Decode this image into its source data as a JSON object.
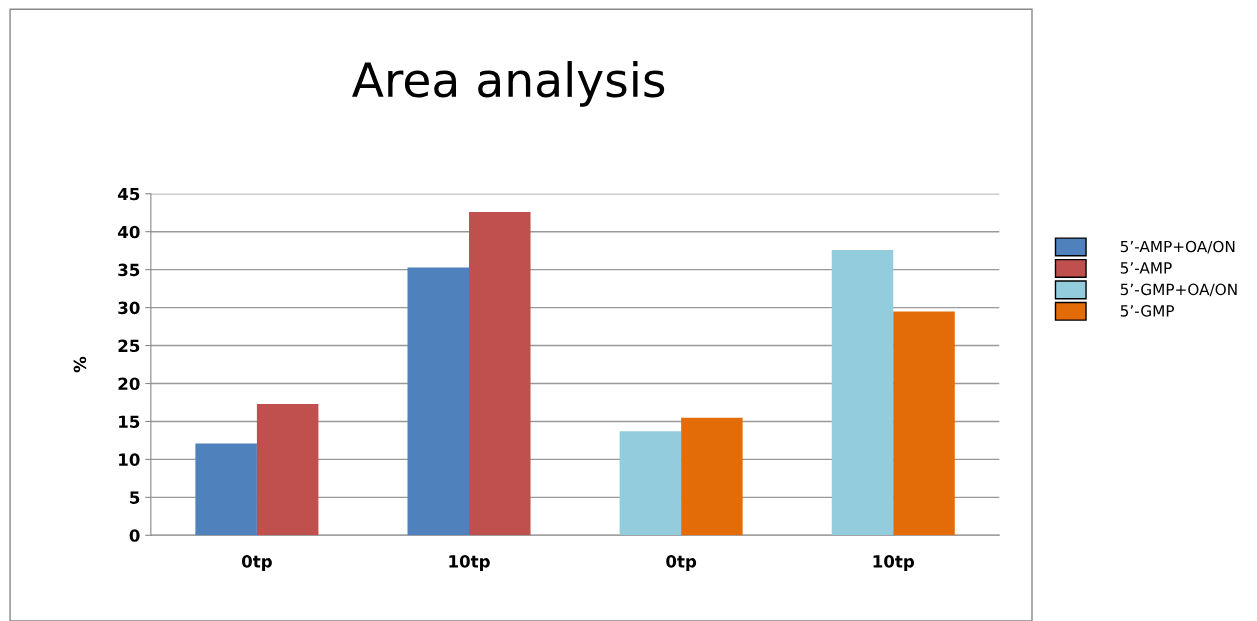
{
  "chart_data": {
    "type": "bar",
    "title": "Area analysis",
    "ylabel": "%",
    "categories": [
      "0tp",
      "10tp",
      "0tp",
      "10tp"
    ],
    "series": [
      {
        "name": "5’-AMP+OA/ON",
        "color": "#4f81bd",
        "values": [
          12.1,
          35.3,
          null,
          null
        ]
      },
      {
        "name": "5’-AMP",
        "color": "#c0504d",
        "values": [
          17.3,
          42.6,
          null,
          null
        ]
      },
      {
        "name": "5’-GMP+OA/ON",
        "color": "#93cddd",
        "values": [
          null,
          null,
          13.7,
          37.6
        ]
      },
      {
        "name": "5’-GMP",
        "color": "#e36c09",
        "values": [
          null,
          null,
          15.5,
          29.5
        ]
      }
    ],
    "ylim": [
      0,
      45
    ],
    "yticks": [
      0,
      5,
      10,
      15,
      20,
      25,
      30,
      35,
      40,
      45
    ],
    "grid": "y",
    "legend": "right"
  }
}
